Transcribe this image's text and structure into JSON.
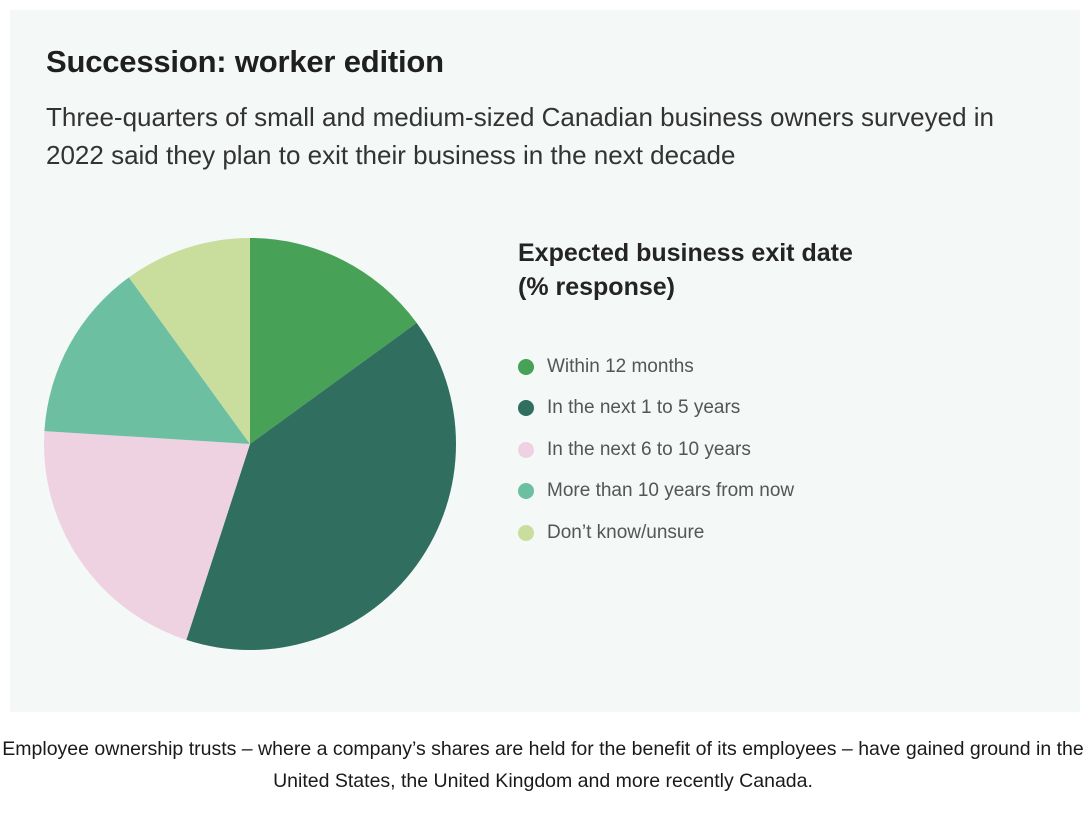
{
  "header": {
    "title": "Succession: worker edition",
    "subtitle": "Three-quarters of small and medium-sized Canadian business owners surveyed in 2022 said they plan to exit their business in the next decade"
  },
  "caption": "Employee ownership trusts – where a company’s shares are held for the benefit of its employees – have gained ground in the United States, the United Kingdom and more recently Canada.",
  "chart_data": {
    "type": "pie",
    "legend_title": "Expected business exit date\n(% response)",
    "legend_position": "right",
    "series": [
      {
        "values": [
          15,
          40,
          21,
          14,
          10
        ],
        "categories": [
          "Within 12 months",
          "In the next 1 to 5 years",
          "In the next 6 to 10 years",
          "More than 10 years from now",
          "Don’t know/unsure"
        ],
        "colors": [
          "#47a156",
          "#306e5f",
          "#efd2e1",
          "#6dbfa2",
          "#c9de9d"
        ]
      }
    ]
  }
}
